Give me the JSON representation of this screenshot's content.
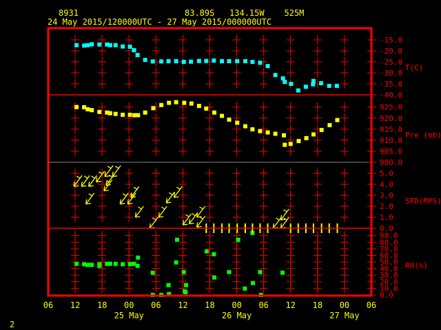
{
  "header": {
    "station": "8931",
    "location": "83.89S   134.15W    525M",
    "period": "24 May 2015/120000UTC - 27 May 2015/000000UTC"
  },
  "footer": {
    "page": "2"
  },
  "colors": {
    "frame": "#ff0000",
    "temperature": "#00ffff",
    "pressure": "#ffff00",
    "wind": "#ffff00",
    "rh": "#00ff00",
    "text": "#ffff00"
  },
  "chart_data": [
    {
      "type": "scatter",
      "ylabel": "T(C)",
      "x_unit": "hours after 24 May 2015 06 UTC",
      "ylim": [
        -40,
        -15
      ],
      "yticks": [
        "-15.0",
        "-20.0",
        "-25.0",
        "-30.0",
        "-35.0",
        "-40.0"
      ],
      "x": [
        6.3,
        8.0,
        8.8,
        9.7,
        11.4,
        13.1,
        13.8,
        15.0,
        16.6,
        18.2,
        19.1,
        19.9,
        21.6,
        23.3,
        25.2,
        26.8,
        28.5,
        30.2,
        31.8,
        33.6,
        35.2,
        36.9,
        38.7,
        40.3,
        42.1,
        43.9,
        45.5,
        47.2,
        48.9,
        50.6,
        52.3,
        52.7,
        54.1,
        55.7,
        57.4,
        59.1,
        59.0,
        60.8,
        62.6,
        64.3
      ],
      "y": [
        -17.4,
        -17.6,
        -17.4,
        -17.0,
        -17.1,
        -17.1,
        -17.4,
        -17.4,
        -18.0,
        -18.1,
        -19.7,
        -21.9,
        -24.1,
        -24.8,
        -24.8,
        -24.7,
        -24.7,
        -25.0,
        -24.9,
        -24.6,
        -24.6,
        -24.4,
        -24.7,
        -24.7,
        -24.7,
        -24.7,
        -25.0,
        -25.4,
        -26.9,
        -31.0,
        -32.5,
        -34.1,
        -35.0,
        -38.0,
        -36.3,
        -33.7,
        -35.2,
        -34.7,
        -35.9,
        -35.9
      ]
    },
    {
      "type": "scatter",
      "ylabel": "Pre (mb)",
      "ylim": [
        900,
        925
      ],
      "yticks": [
        "925.0",
        "920.0",
        "915.0",
        "910.0",
        "905.0",
        "900.0"
      ],
      "x": [
        6.3,
        8.0,
        8.8,
        9.7,
        11.4,
        13.1,
        13.8,
        15.0,
        16.6,
        18.2,
        19.2,
        20.0,
        21.6,
        23.4,
        25.2,
        26.9,
        28.5,
        30.3,
        31.9,
        33.6,
        35.2,
        37.0,
        38.7,
        40.3,
        42.1,
        43.9,
        45.5,
        47.2,
        48.9,
        50.6,
        52.5,
        52.7,
        54.0,
        55.8,
        57.5,
        59.1,
        60.9,
        62.7,
        64.4
      ],
      "y": [
        925.0,
        924.9,
        924.0,
        923.6,
        922.8,
        922.5,
        922.2,
        921.9,
        921.5,
        921.5,
        921.3,
        921.3,
        922.5,
        924.5,
        925.9,
        926.9,
        927.2,
        926.9,
        926.6,
        925.5,
        924.3,
        922.5,
        921.0,
        919.3,
        917.9,
        916.3,
        914.9,
        914.1,
        913.5,
        912.9,
        912.2,
        907.9,
        908.3,
        909.6,
        910.9,
        912.6,
        914.6,
        916.8,
        919.1
      ]
    },
    {
      "type": "scatter",
      "ylabel": "SPD(MPS)",
      "ylim": [
        0,
        5
      ],
      "yticks": [
        "5.0",
        "4.0",
        "3.0",
        "2.0",
        "1.0",
        "0.0"
      ],
      "x": [
        5.7,
        7.4,
        9.0,
        10.7,
        12.4,
        12.9,
        14.3,
        12.6,
        8.4,
        16.0,
        17.7,
        18.4,
        19.4,
        24.6,
        26.3,
        28.0,
        22.6,
        30.0,
        31.4,
        33.1,
        33.1,
        50.1,
        51.8,
        51.8
      ],
      "y": [
        3.8,
        3.8,
        3.8,
        4.2,
        3.4,
        3.9,
        4.7,
        4.7,
        2.2,
        2.2,
        2.2,
        2.8,
        1.0,
        1.0,
        2.3,
        2.8,
        0.0,
        0.3,
        0.4,
        0.1,
        1.0,
        0.0,
        0.0,
        0.75
      ],
      "calm_x": [
        35.2,
        36.9,
        38.7,
        40.3,
        42.1,
        43.9,
        45.5,
        47.2,
        48.9,
        54.0,
        55.7,
        57.4,
        59.1,
        60.9,
        62.6,
        64.4
      ],
      "marker": "wind-barb"
    },
    {
      "type": "scatter",
      "ylabel": "RH(%)",
      "ylim": [
        0,
        90
      ],
      "yticks": [
        "90.0",
        "80.0",
        "70.0",
        "60.0",
        "50.0",
        "40.0",
        "30.0",
        "20.0",
        "10.0",
        "0.0"
      ],
      "x": [
        6.3,
        8.0,
        8.8,
        9.7,
        11.4,
        11.4,
        13.1,
        13.8,
        15.0,
        16.6,
        18.2,
        19.1,
        19.9,
        20.0,
        23.3,
        23.3,
        25.2,
        26.8,
        26.9,
        28.5,
        28.7,
        30.2,
        30.4,
        30.6,
        30.7,
        35.3,
        36.9,
        37.0,
        40.3,
        42.3,
        43.8,
        45.5,
        45.6,
        47.2,
        47.4,
        52.2
      ],
      "y": [
        47.2,
        46.6,
        45.6,
        45.6,
        46.6,
        44.1,
        47.2,
        47.2,
        47.2,
        46.6,
        46.6,
        47.2,
        44.1,
        56.6,
        33.7,
        0,
        0,
        14.9,
        1.4,
        49.3,
        83.7,
        34.7,
        5.5,
        4.2,
        14.9,
        66.0,
        61.8,
        26.4,
        34.7,
        83.7,
        9.7,
        94.1,
        18.0,
        34.7,
        0,
        33.7
      ]
    }
  ],
  "xaxis": {
    "range_hours": [
      0,
      72
    ],
    "tick_labels": [
      "06",
      "12",
      "18",
      "00",
      "06",
      "12",
      "18",
      "00",
      "06",
      "12",
      "18",
      "00",
      "06"
    ],
    "date_labels": [
      {
        "label": "25 May",
        "tick": 3
      },
      {
        "label": "26 May",
        "tick": 7
      },
      {
        "label": "27 May",
        "tick": 11
      }
    ]
  }
}
